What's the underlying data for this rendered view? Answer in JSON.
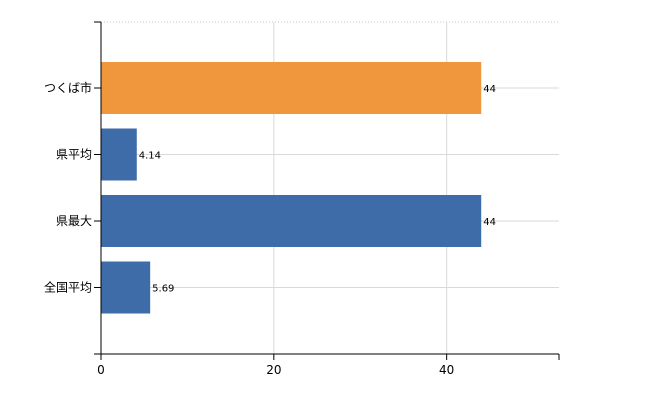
{
  "chart_data": {
    "type": "bar",
    "orientation": "horizontal",
    "categories": [
      "つくば市",
      "県平均",
      "県最大",
      "全国平均"
    ],
    "values": [
      44,
      4.14,
      44,
      5.69
    ],
    "data_labels": [
      "44",
      "4.14",
      "44",
      "5.69"
    ],
    "bar_colors": [
      "#f0963c",
      "#3d6ca8",
      "#3d6ca8",
      "#3d6ca8"
    ],
    "xlim": [
      0,
      53
    ],
    "x_ticks": [
      0,
      20,
      40
    ],
    "x_tick_labels": [
      "0",
      "20",
      "40"
    ],
    "grid": true,
    "title": "",
    "xlabel": "",
    "ylabel": ""
  }
}
